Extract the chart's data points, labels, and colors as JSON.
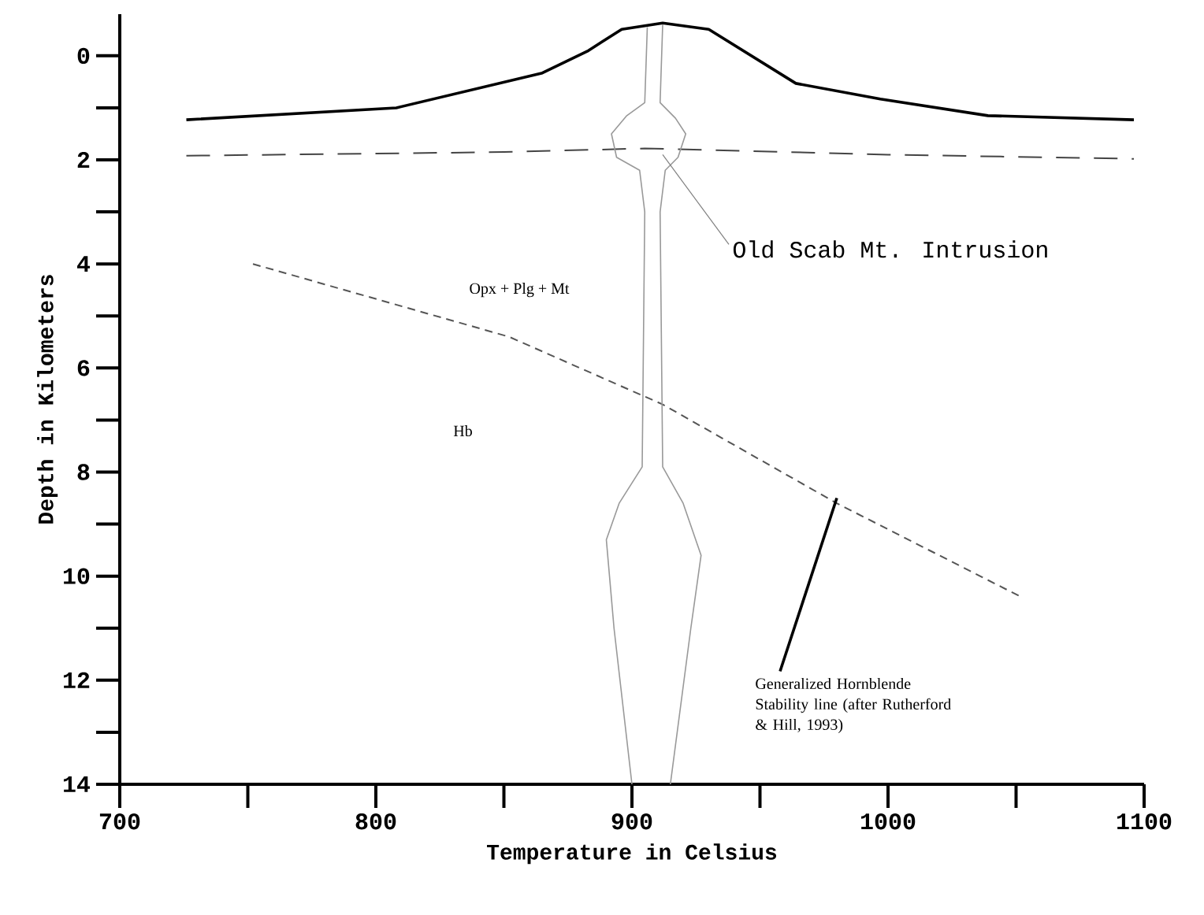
{
  "chart_data": {
    "type": "line",
    "xlabel": "Temperature in Celsius",
    "ylabel": "Depth in Kilometers",
    "xlim": [
      700,
      1100
    ],
    "ylim": [
      14,
      -0.8
    ],
    "xticks": [
      700,
      {
        "value": 750,
        "label": null
      },
      800,
      {
        "value": 850,
        "label": null
      },
      900,
      {
        "value": 950,
        "label": null
      },
      1000,
      {
        "value": 1050,
        "label": null
      },
      1100
    ],
    "yticks": [
      0,
      {
        "value": 1,
        "label": null
      },
      2,
      {
        "value": 3,
        "label": null
      },
      4,
      {
        "value": 5,
        "label": null
      },
      6,
      {
        "value": 7,
        "label": null
      },
      8,
      {
        "value": 9,
        "label": null
      },
      10,
      {
        "value": 11,
        "label": null
      },
      12,
      {
        "value": 13,
        "label": null
      },
      14
    ],
    "grid": false,
    "series": [
      {
        "color": "#000000",
        "line_style": "solid",
        "x": [
          726,
          808,
          865,
          883,
          896,
          912,
          930,
          964,
          997,
          1039,
          1096
        ],
        "values": [
          1.23,
          1.0,
          0.33,
          -0.1,
          -0.51,
          -0.63,
          -0.51,
          0.53,
          0.83,
          1.15,
          1.23
        ]
      },
      {
        "color": "#444444",
        "line_style": "dashed",
        "x": [
          726,
          850,
          905,
          1000,
          1096
        ],
        "values": [
          1.92,
          1.85,
          1.78,
          1.9,
          1.98
        ]
      },
      {
        "color": "#555555",
        "line_style": "dotted",
        "x": [
          752,
          852,
          912,
          980,
          1052
        ],
        "values": [
          4.0,
          5.4,
          6.7,
          8.6,
          10.4
        ]
      },
      {
        "color": "#999999",
        "line_style": "solid",
        "x": [
          906,
          905,
          898,
          892,
          894,
          903,
          905,
          904,
          895,
          890,
          893,
          900
        ],
        "values": [
          -0.55,
          0.9,
          1.15,
          1.5,
          1.95,
          2.2,
          3,
          7.9,
          8.6,
          9.3,
          11,
          14
        ]
      },
      {
        "color": "#999999",
        "line_style": "solid",
        "x": [
          912,
          911,
          917,
          921,
          918,
          913,
          911,
          912,
          920,
          927,
          923,
          915
        ],
        "values": [
          -0.6,
          0.9,
          1.2,
          1.5,
          1.95,
          2.2,
          3,
          7.9,
          8.6,
          9.6,
          11,
          14
        ]
      }
    ],
    "annotations": [
      {
        "text": "Old Scab Mt. Intrusion",
        "x": 912,
        "y": 1.9
      },
      "Opx + Plg + Mt",
      "Hb",
      {
        "text": "Generalized Hornblende Stability line (after Rutherford & Hill, 1993)",
        "x": 980,
        "y": 8.5
      }
    ]
  }
}
